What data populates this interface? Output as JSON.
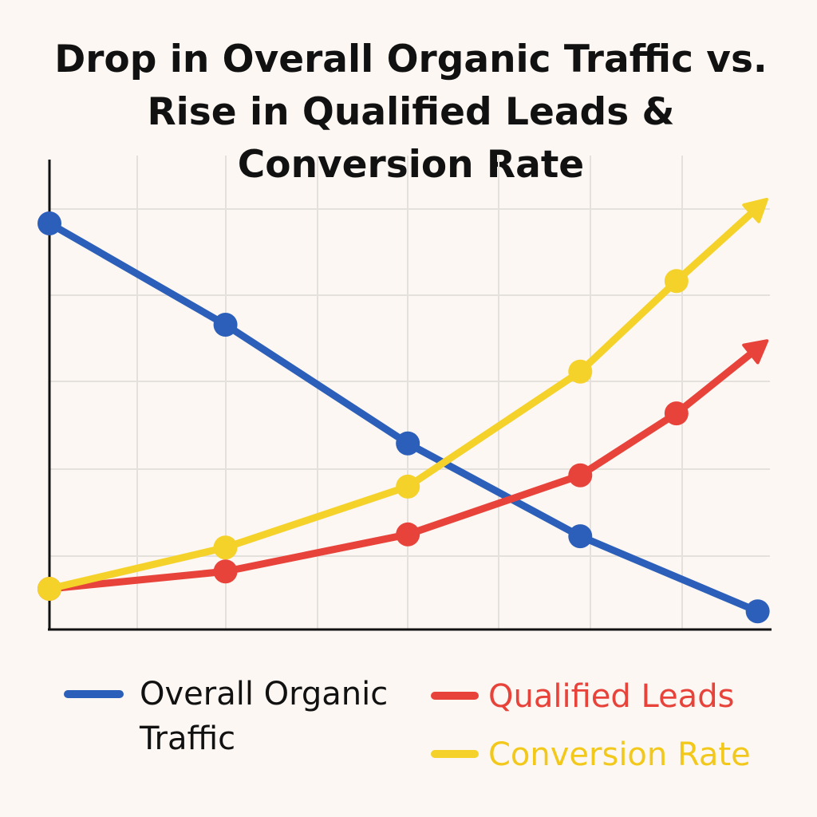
{
  "chart_data": {
    "type": "line",
    "title": "Drop in Overall Organic Traffic vs. Rise in Qualified Leads & Conversion Rate",
    "xlim": [
      0,
      100
    ],
    "ylim": [
      0,
      100
    ],
    "series": [
      {
        "name": "Overall Organic Traffic",
        "color": "#2c5fb9",
        "label_color": "#111111",
        "end": "dot",
        "x": [
          0,
          24.7,
          50.3,
          74.5,
          99.4
        ],
        "values": [
          86.4,
          64.8,
          39.5,
          19.7,
          3.7
        ]
      },
      {
        "name": "Qualified Leads",
        "color": "#e8433b",
        "label_color": "#e8433b",
        "end": "arrow",
        "x": [
          0,
          24.7,
          50.3,
          74.5,
          88,
          100
        ],
        "values": [
          8.5,
          12.2,
          20.1,
          32.7,
          45.9,
          60.5
        ]
      },
      {
        "name": "Conversion Rate",
        "color": "#f4d22a",
        "label_color": "#f2c81a",
        "end": "arrow",
        "x": [
          0,
          24.7,
          50.3,
          74.5,
          88,
          100
        ],
        "values": [
          8.5,
          17.3,
          30.3,
          54.8,
          74.1,
          90.6
        ]
      }
    ]
  }
}
